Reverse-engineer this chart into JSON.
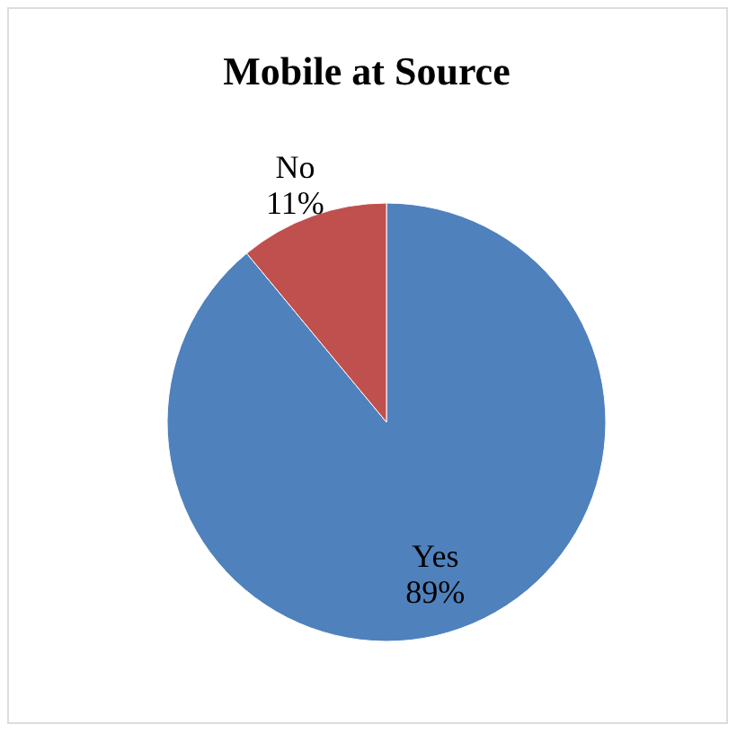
{
  "chart_data": {
    "type": "pie",
    "title": "Mobile at Source",
    "categories": [
      "Yes",
      "No"
    ],
    "values": [
      89,
      11
    ],
    "value_labels": [
      "89%",
      "11%"
    ],
    "colors": [
      "#4f81bd",
      "#c0504d"
    ],
    "legend": false
  }
}
